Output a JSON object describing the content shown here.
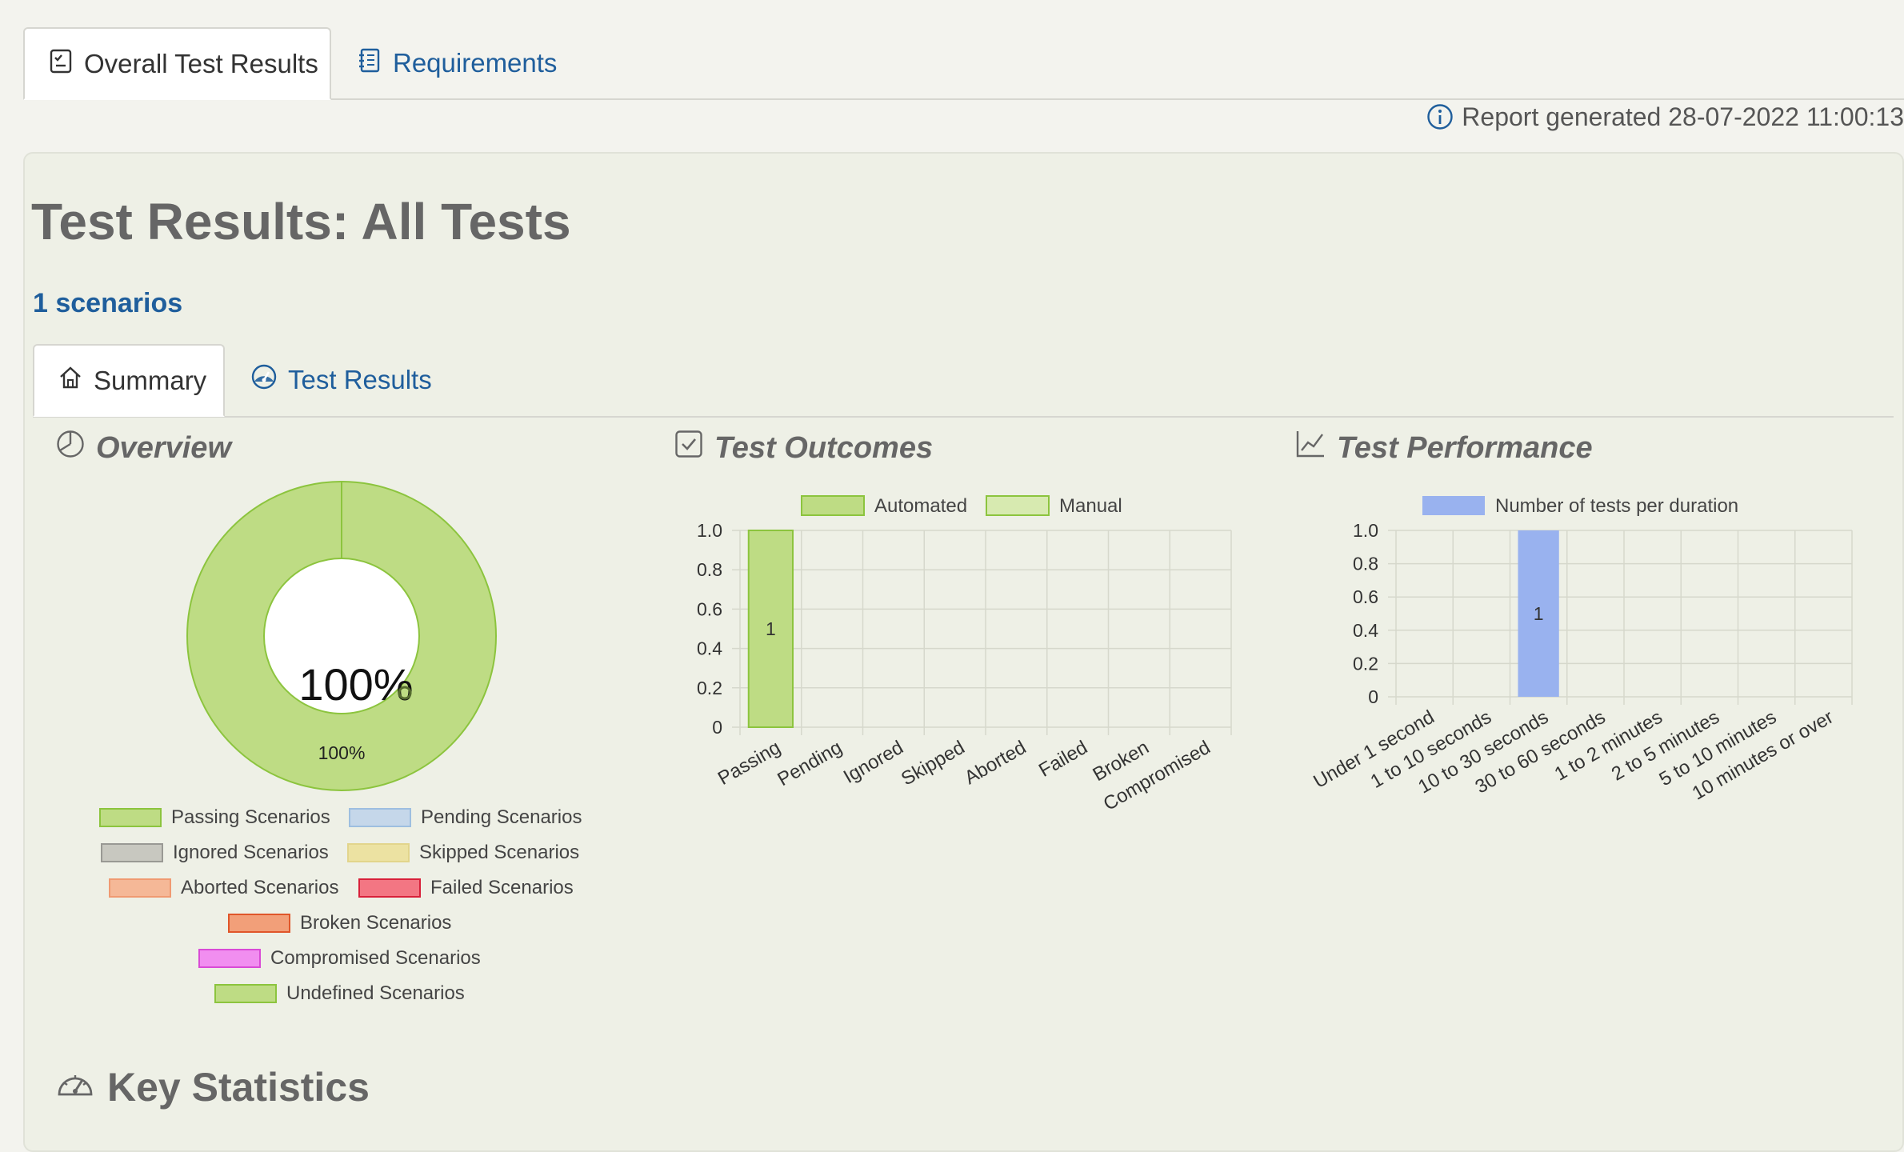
{
  "tabs": [
    {
      "label": "Overall Test Results",
      "active": true,
      "icon": "checklist-icon"
    },
    {
      "label": "Requirements",
      "active": false,
      "icon": "notebook-icon"
    }
  ],
  "report": {
    "text": "Report generated 28-07-2022 11:00:13",
    "icon": "info-icon"
  },
  "page_title": "Test Results: All Tests",
  "scenario_count": "1 scenarios",
  "sub_tabs": [
    {
      "label": "Summary",
      "active": true,
      "icon": "home-icon"
    },
    {
      "label": "Test Results",
      "active": false,
      "icon": "dashboard-icon"
    }
  ],
  "sections": {
    "overview": "Overview",
    "outcomes": "Test Outcomes",
    "performance": "Test Performance",
    "key_statistics": "Key Statistics"
  },
  "colors": {
    "passing": "#bedc84",
    "passing_border": "#8cc43e",
    "pending": "#c5d7ea",
    "ignored": "#c8c8c0",
    "skipped": "#ece2a2",
    "aborted": "#f5b897",
    "failed": "#f37683",
    "broken": "#f29f79",
    "compromised": "#f18ef0",
    "undefined": "#bedc84",
    "perf_bar": "#99b2ef",
    "link": "#1f5e9c"
  },
  "overview_legend": [
    {
      "label": "Passing Scenarios",
      "color": "#bedc84",
      "border": "#8cc43e"
    },
    {
      "label": "Pending Scenarios",
      "color": "#c5d7ea",
      "border": "#9ebfe0"
    },
    {
      "label": "Ignored Scenarios",
      "color": "#c8c8c0",
      "border": "#999994"
    },
    {
      "label": "Skipped Scenarios",
      "color": "#ece2a2",
      "border": "#e2d58c"
    },
    {
      "label": "Aborted Scenarios",
      "color": "#f5b897",
      "border": "#f09a72"
    },
    {
      "label": "Failed Scenarios",
      "color": "#f37683",
      "border": "#d8203a"
    },
    {
      "label": "Broken Scenarios",
      "color": "#f29f79",
      "border": "#e0562a"
    },
    {
      "label": "Compromised Scenarios",
      "color": "#f18ef0",
      "border": "#d94ad6"
    },
    {
      "label": "Undefined Scenarios",
      "color": "#bedc84",
      "border": "#8cc43e"
    }
  ],
  "chart_data": [
    {
      "type": "pie",
      "name": "overview",
      "center_label": "100%",
      "slices": [
        {
          "label": "Passing Scenarios",
          "value": 100,
          "text": "100%"
        }
      ]
    },
    {
      "type": "bar",
      "name": "outcomes",
      "legend": [
        "Automated",
        "Manual"
      ],
      "categories": [
        "Passing",
        "Pending",
        "Ignored",
        "Skipped",
        "Aborted",
        "Failed",
        "Broken",
        "Compromised"
      ],
      "series": [
        {
          "name": "Automated",
          "values": [
            1,
            0,
            0,
            0,
            0,
            0,
            0,
            0
          ]
        },
        {
          "name": "Manual",
          "values": [
            0,
            0,
            0,
            0,
            0,
            0,
            0,
            0
          ]
        }
      ],
      "ylim": [
        0,
        1
      ],
      "yticks": [
        "0",
        "0.2",
        "0.4",
        "0.6",
        "0.8",
        "1.0"
      ],
      "data_labels": [
        "1"
      ],
      "grid": true
    },
    {
      "type": "bar",
      "name": "performance",
      "legend": [
        "Number of tests per duration"
      ],
      "categories": [
        "Under 1 second",
        "1 to 10 seconds",
        "10 to 30 seconds",
        "30 to 60 seconds",
        "1 to 2 minutes",
        "2 to 5 minutes",
        "5 to 10 minutes",
        "10 minutes or over"
      ],
      "series": [
        {
          "name": "Number of tests per duration",
          "values": [
            0,
            0,
            1,
            0,
            0,
            0,
            0,
            0
          ]
        }
      ],
      "ylim": [
        0,
        1
      ],
      "yticks": [
        "0",
        "0.2",
        "0.4",
        "0.6",
        "0.8",
        "1.0"
      ],
      "data_labels": [
        "1"
      ],
      "grid": true
    }
  ]
}
